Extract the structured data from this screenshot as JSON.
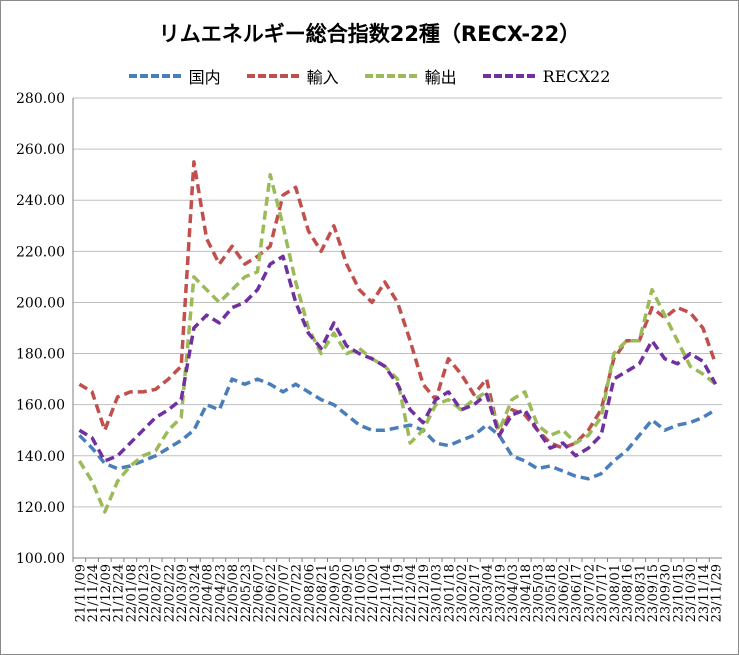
{
  "chart_data": {
    "type": "line",
    "title": "リムエネルギー総合指数22種（RECX-22）",
    "ylim": [
      100,
      280
    ],
    "yticks": [
      "100.00",
      "120.00",
      "140.00",
      "160.00",
      "180.00",
      "200.00",
      "220.00",
      "240.00",
      "260.00",
      "280.00"
    ],
    "grid": "horizontal",
    "legend_position": "top",
    "x_tick_labels": [
      "21/11/09",
      "21/11/24",
      "21/12/09",
      "21/12/24",
      "22/01/08",
      "22/01/23",
      "22/02/07",
      "22/02/22",
      "22/03/09",
      "22/03/24",
      "22/04/08",
      "22/04/23",
      "22/05/08",
      "22/05/23",
      "22/06/07",
      "22/06/22",
      "22/07/07",
      "22/07/22",
      "22/08/06",
      "22/08/21",
      "22/09/05",
      "22/09/20",
      "22/10/05",
      "22/10/20",
      "22/11/04",
      "22/11/19",
      "22/12/04",
      "22/12/19",
      "23/01/03",
      "23/01/18",
      "23/02/02",
      "23/02/17",
      "23/03/04",
      "23/03/19",
      "23/04/03",
      "23/04/18",
      "23/05/03",
      "23/05/18",
      "23/06/02",
      "23/06/17",
      "23/07/02",
      "23/07/17",
      "23/08/01",
      "23/08/16",
      "23/08/31",
      "23/09/15",
      "23/09/30",
      "23/10/15",
      "23/10/30",
      "23/11/14",
      "23/11/29"
    ],
    "series": [
      {
        "name": "国内",
        "color": "#4a7ebb",
        "values": [
          148,
          143,
          137,
          135,
          136,
          138,
          140,
          143,
          146,
          150,
          160,
          158,
          170,
          168,
          170,
          168,
          165,
          168,
          165,
          162,
          160,
          156,
          152,
          150,
          150,
          151,
          152,
          150,
          145,
          144,
          146,
          148,
          152,
          148,
          140,
          138,
          135,
          136,
          134,
          132,
          131,
          133,
          138,
          142,
          148,
          154,
          150,
          152,
          153,
          155,
          158
        ]
      },
      {
        "name": "輸入",
        "color": "#c0504d",
        "values": [
          168,
          165,
          150,
          163,
          165,
          165,
          166,
          170,
          175,
          255,
          225,
          215,
          222,
          215,
          218,
          222,
          242,
          245,
          228,
          220,
          230,
          215,
          205,
          200,
          208,
          200,
          185,
          168,
          162,
          178,
          172,
          164,
          170,
          148,
          158,
          156,
          150,
          145,
          143,
          145,
          150,
          158,
          178,
          185,
          185,
          198,
          194,
          198,
          196,
          190,
          176
        ]
      },
      {
        "name": "輸出",
        "color": "#9bbb59",
        "values": [
          138,
          130,
          118,
          130,
          136,
          140,
          142,
          150,
          155,
          210,
          205,
          200,
          205,
          210,
          212,
          250,
          230,
          208,
          190,
          180,
          188,
          180,
          182,
          178,
          175,
          170,
          145,
          150,
          160,
          162,
          158,
          162,
          165,
          150,
          162,
          165,
          152,
          148,
          150,
          145,
          148,
          155,
          180,
          185,
          185,
          205,
          195,
          185,
          175,
          172,
          168
        ]
      },
      {
        "name": "RECX22",
        "color": "#7030a0",
        "values": [
          150,
          147,
          138,
          140,
          145,
          150,
          155,
          158,
          162,
          190,
          195,
          192,
          198,
          200,
          205,
          215,
          218,
          200,
          188,
          182,
          192,
          183,
          180,
          178,
          175,
          168,
          158,
          153,
          162,
          165,
          158,
          160,
          164,
          148,
          156,
          158,
          150,
          143,
          145,
          140,
          143,
          148,
          170,
          173,
          176,
          185,
          178,
          176,
          180,
          177,
          168
        ]
      }
    ]
  }
}
